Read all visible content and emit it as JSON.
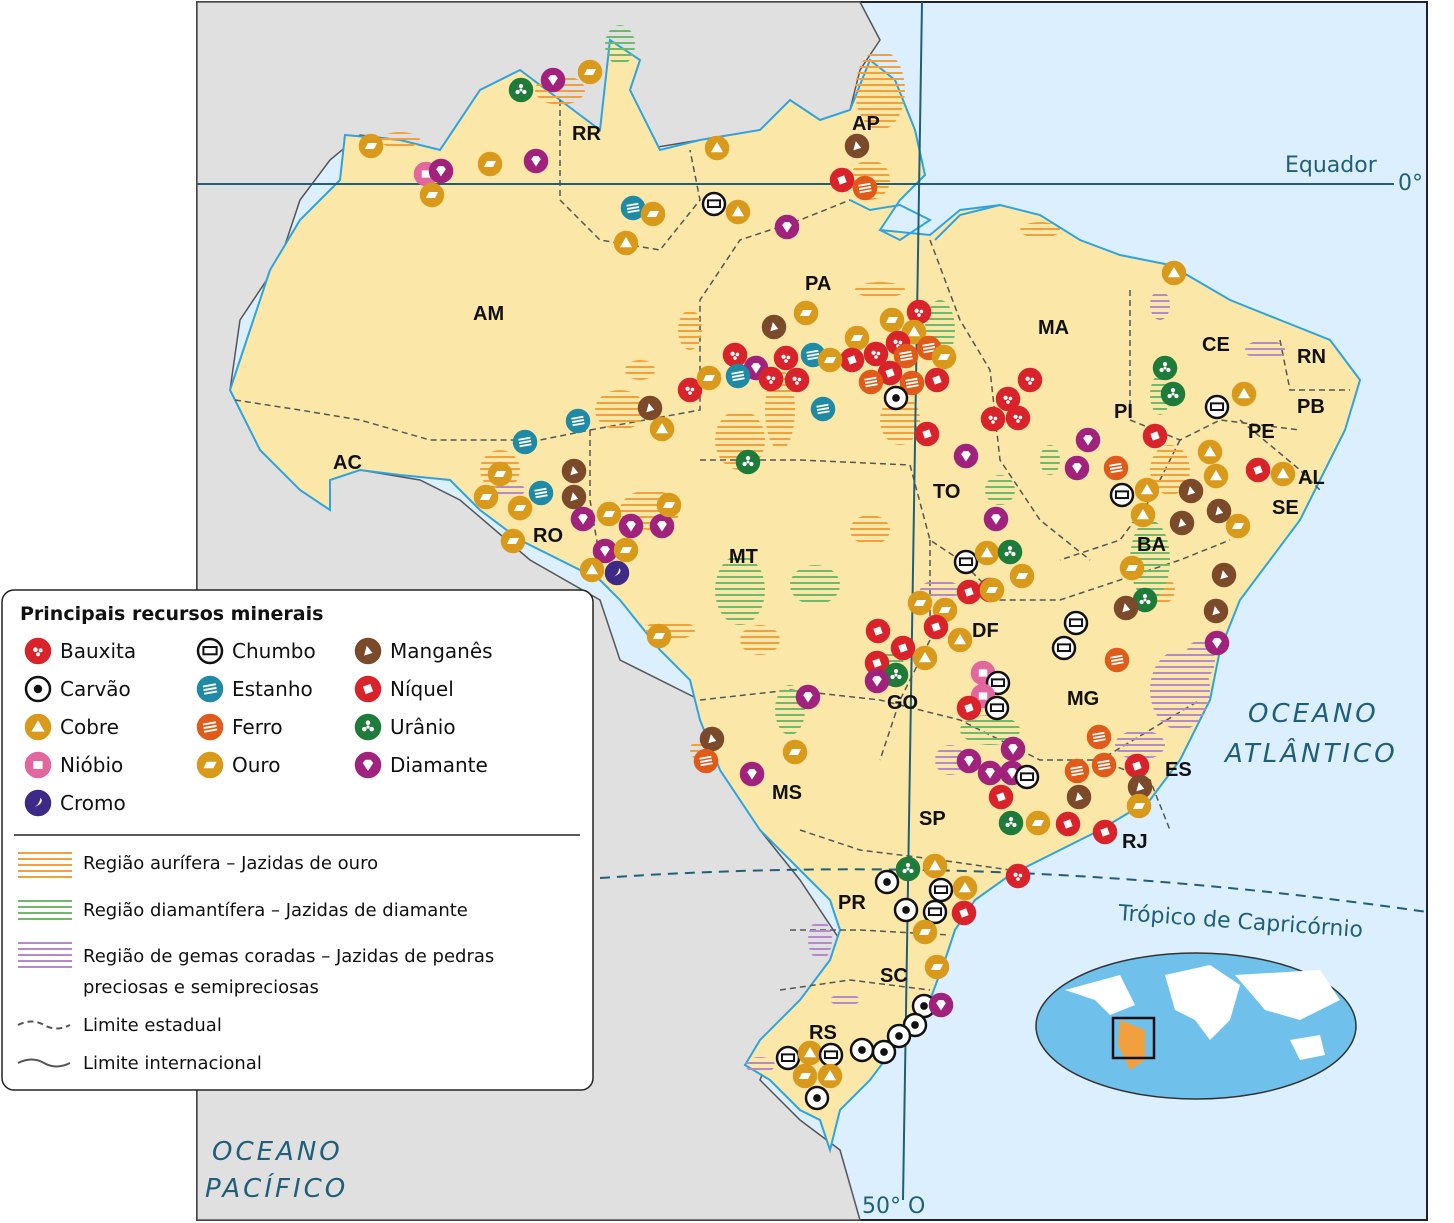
{
  "legend": {
    "title": "Principais recursos minerais",
    "resources": [
      {
        "key": "bauxita",
        "label": "Bauxita",
        "color": "#d9232a"
      },
      {
        "key": "carvao",
        "label": "Carvão",
        "color": "#111111"
      },
      {
        "key": "cobre",
        "label": "Cobre",
        "color": "#d99a1c"
      },
      {
        "key": "niobio",
        "label": "Nióbio",
        "color": "#e3679f"
      },
      {
        "key": "cromo",
        "label": "Cromo",
        "color": "#3d2a86"
      },
      {
        "key": "chumbo",
        "label": "Chumbo",
        "color": "#111111"
      },
      {
        "key": "estanho",
        "label": "Estanho",
        "color": "#1f8aa6"
      },
      {
        "key": "ferro",
        "label": "Ferro",
        "color": "#e05b1a"
      },
      {
        "key": "ouro",
        "label": "Ouro",
        "color": "#d99a1c"
      },
      {
        "key": "manganes",
        "label": "Manganês",
        "color": "#7a4a2b"
      },
      {
        "key": "niquel",
        "label": "Níquel",
        "color": "#d9232a"
      },
      {
        "key": "uranio",
        "label": "Urânio",
        "color": "#1e7b3a"
      },
      {
        "key": "diamante",
        "label": "Diamante",
        "color": "#a0227c"
      }
    ],
    "regions": [
      {
        "key": "aurifera",
        "label": "Região aurífera – Jazidas de ouro",
        "color": "#f2a03d"
      },
      {
        "key": "diamantifera",
        "label": "Região diamantífera – Jazidas de diamante",
        "color": "#6fba6a"
      },
      {
        "key": "gemas_line1",
        "label": "Região de gemas coradas – Jazidas de pedras",
        "color": "#b48acb"
      },
      {
        "key": "gemas_line2",
        "label": "preciosas e semipreciosas"
      }
    ],
    "limits": [
      {
        "key": "estadual",
        "label": "Limite estadual"
      },
      {
        "key": "internacional",
        "label": "Limite internacional"
      }
    ]
  },
  "lines": {
    "equator": "Equador",
    "equator_deg": "0°",
    "tropic": "Trópico de Capricórnio",
    "meridian": "50° O"
  },
  "oceans": {
    "atlantic_1": "OCEANO",
    "atlantic_2": "ATLÂNTICO",
    "pacific_1": "OCEANO",
    "pacific_2": "PACÍFICO"
  },
  "states": [
    "RR",
    "AP",
    "AM",
    "PA",
    "MA",
    "CE",
    "RN",
    "PB",
    "PE",
    "AL",
    "SE",
    "PI",
    "AC",
    "RO",
    "TO",
    "BA",
    "MT",
    "DF",
    "GO",
    "MG",
    "ES",
    "MS",
    "SP",
    "RJ",
    "PR",
    "SC",
    "RS"
  ],
  "colors": {
    "ocean": "#dcefff",
    "land_brazil": "#fbe8a8",
    "land_other": "#e0e0e0",
    "grid_line": "#1f5f7a",
    "coast": "#2ea3e0"
  }
}
